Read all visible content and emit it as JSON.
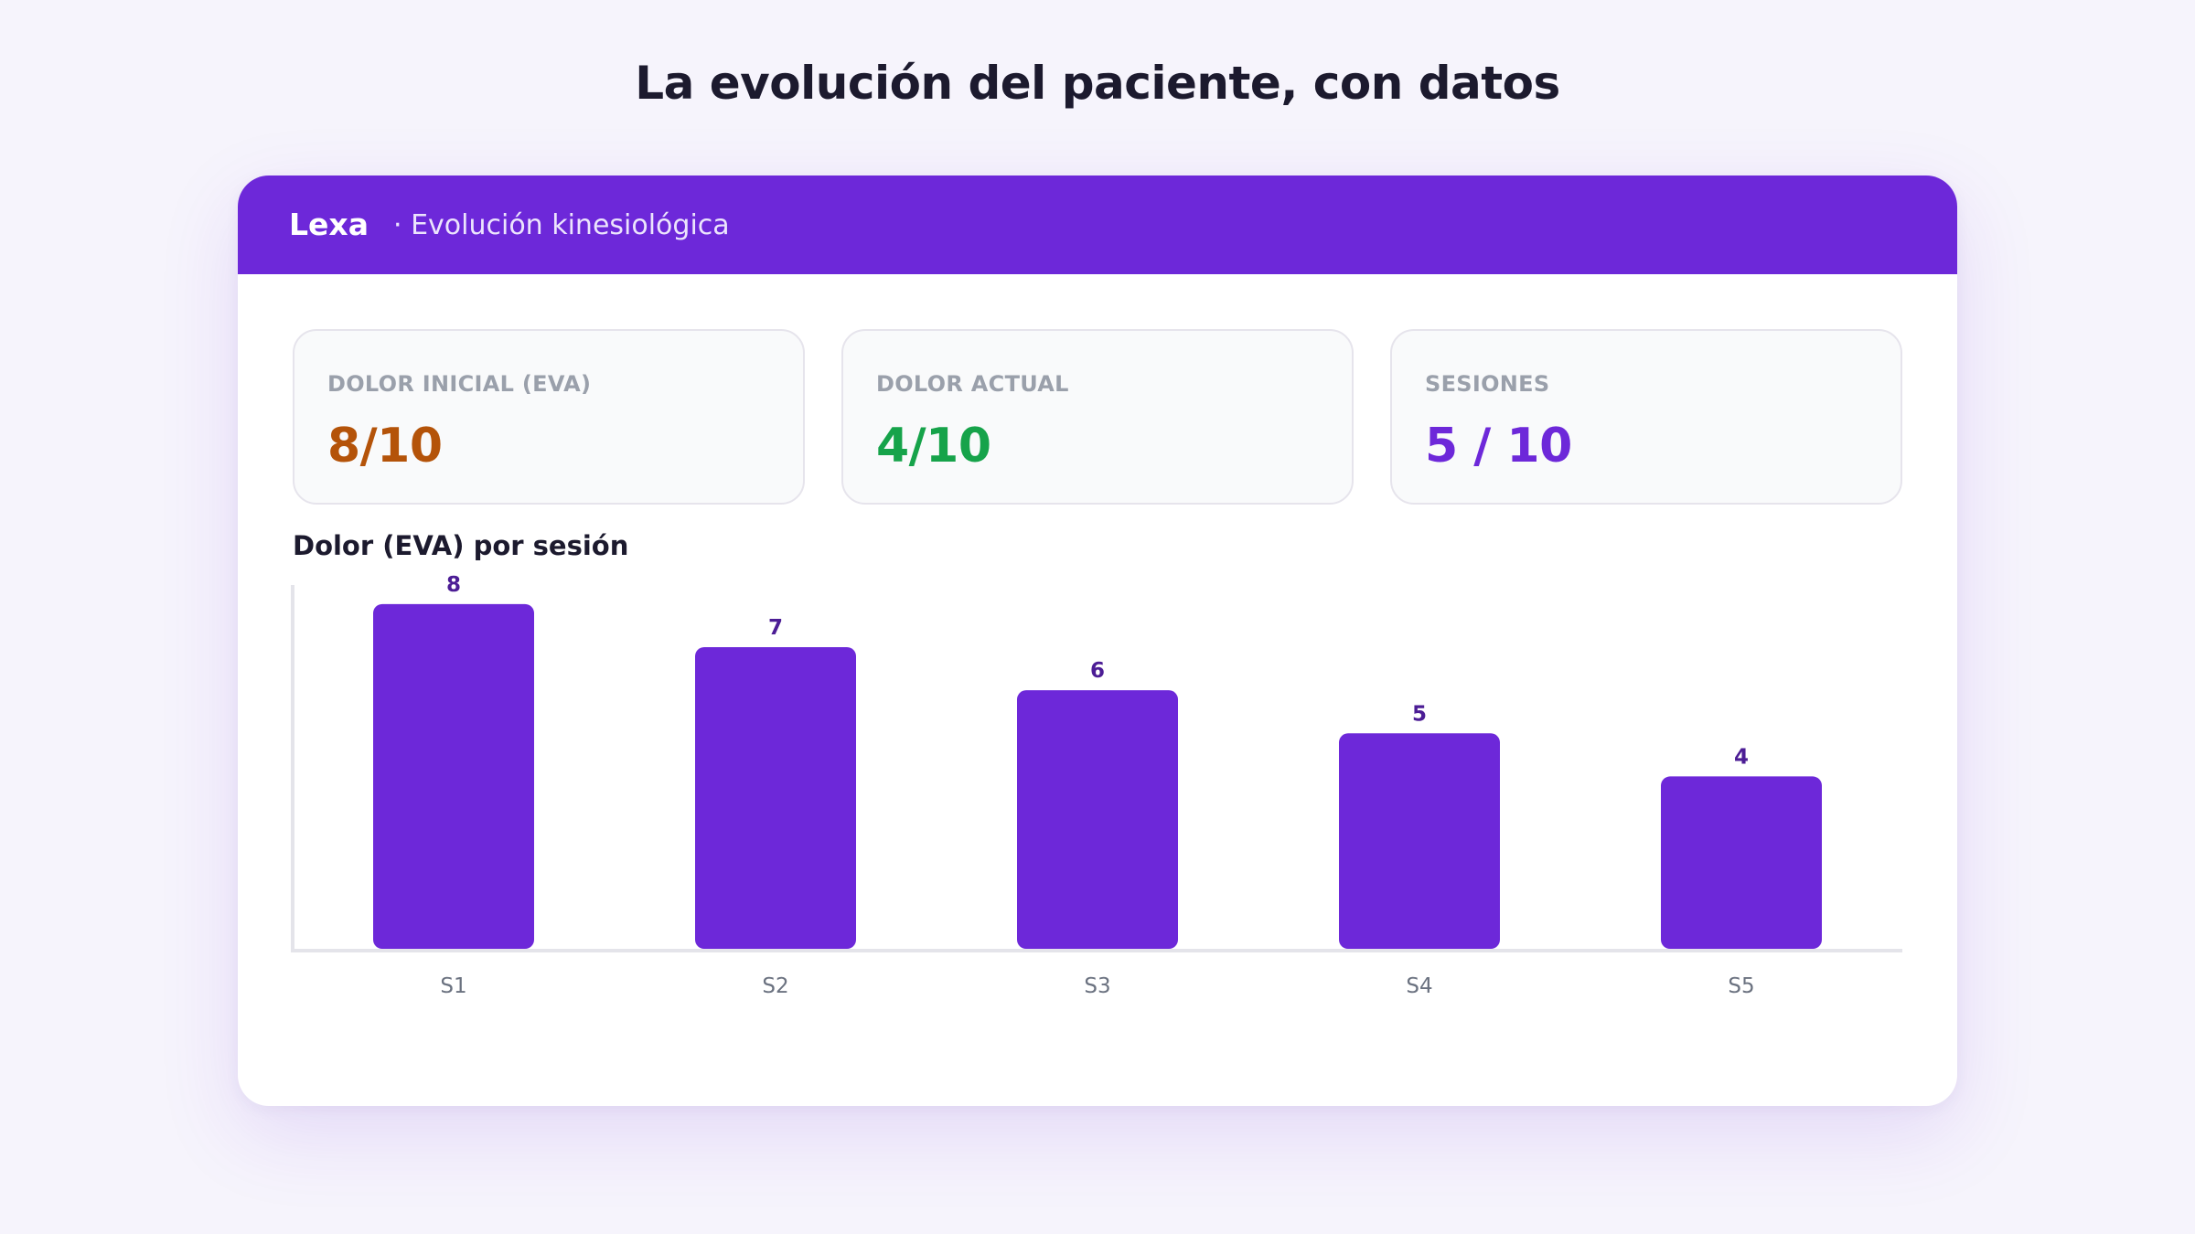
{
  "heading": "La evolución del paciente, con datos",
  "header": {
    "brand": "Lexa",
    "subtitle": "· Evolución kinesiológica"
  },
  "stats": [
    {
      "label": "DOLOR INICIAL (EVA)",
      "value": "8/10",
      "color": "#b45309"
    },
    {
      "label": "DOLOR ACTUAL",
      "value": "4/10",
      "color": "#16a34a"
    },
    {
      "label": "SESIONES",
      "value": "5 / 10",
      "color": "#6d28d9"
    }
  ],
  "chart_title": "Dolor (EVA) por sesión",
  "chart_data": {
    "type": "bar",
    "title": "Dolor (EVA) por sesión",
    "categories": [
      "S1",
      "S2",
      "S3",
      "S4",
      "S5"
    ],
    "values": [
      8,
      7,
      6,
      5,
      4
    ],
    "ylim": [
      0,
      8.4
    ],
    "bar_color": "#6d28d9",
    "label_color": "#4c1d95",
    "grid": false
  }
}
